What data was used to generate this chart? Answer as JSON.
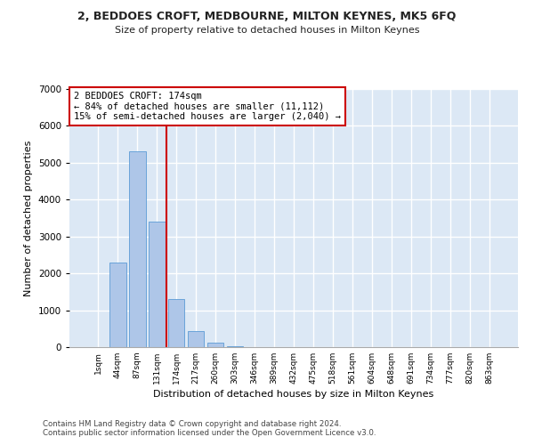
{
  "title1": "2, BEDDOES CROFT, MEDBOURNE, MILTON KEYNES, MK5 6FQ",
  "title2": "Size of property relative to detached houses in Milton Keynes",
  "xlabel": "Distribution of detached houses by size in Milton Keynes",
  "ylabel": "Number of detached properties",
  "footnote1": "Contains HM Land Registry data © Crown copyright and database right 2024.",
  "footnote2": "Contains public sector information licensed under the Open Government Licence v3.0.",
  "bar_color": "#aec6e8",
  "bar_edge_color": "#5b9bd5",
  "redline_color": "#cc0000",
  "annotation_box_color": "#cc0000",
  "background_color": "#dce8f5",
  "grid_color": "#ffffff",
  "categories": [
    "1sqm",
    "44sqm",
    "87sqm",
    "131sqm",
    "174sqm",
    "217sqm",
    "260sqm",
    "303sqm",
    "346sqm",
    "389sqm",
    "432sqm",
    "475sqm",
    "518sqm",
    "561sqm",
    "604sqm",
    "648sqm",
    "691sqm",
    "734sqm",
    "777sqm",
    "820sqm",
    "863sqm"
  ],
  "values": [
    10,
    2300,
    5300,
    3400,
    1300,
    430,
    130,
    30,
    5,
    0,
    0,
    0,
    0,
    0,
    0,
    0,
    0,
    0,
    0,
    0,
    0
  ],
  "redline_index": 4,
  "annotation_text": "2 BEDDOES CROFT: 174sqm\n← 84% of detached houses are smaller (11,112)\n15% of semi-detached houses are larger (2,040) →",
  "ylim": [
    0,
    7000
  ],
  "yticks": [
    0,
    1000,
    2000,
    3000,
    4000,
    5000,
    6000,
    7000
  ]
}
